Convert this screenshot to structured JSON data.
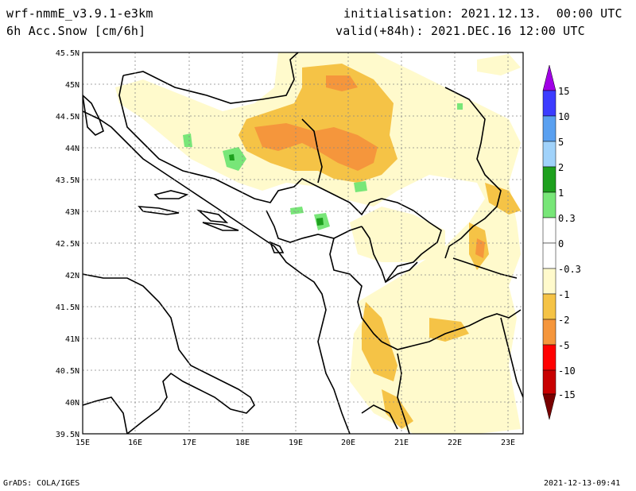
{
  "header": {
    "model": "wrf-nmmE_v3.9.1-e3km",
    "field": "6h Acc.Snow [cm/6h]",
    "init": "initialisation: 2021.12.13.  00:00 UTC",
    "valid": "valid(+84h): 2021.DEC.16 12:00 UTC"
  },
  "footer": {
    "left": "GrADS: COLA/IGES",
    "right": "2021-12-13-09:41"
  },
  "map": {
    "lat_ticks": [
      "39.5N",
      "40N",
      "40.5N",
      "41N",
      "41.5N",
      "42N",
      "42.5N",
      "43N",
      "43.5N",
      "44N",
      "44.5N",
      "45N",
      "45.5N"
    ],
    "lon_ticks": [
      "15E",
      "16E",
      "17E",
      "18E",
      "19E",
      "20E",
      "21E",
      "22E",
      "23E"
    ]
  },
  "colorbar": {
    "labels": [
      "15",
      "10",
      "5",
      "2",
      "1",
      "0.3",
      "0",
      "-0.3",
      "-1",
      "-2",
      "-5",
      "-10",
      "-15"
    ],
    "colors": [
      "#a000e6",
      "#3c3cff",
      "#5aa0f0",
      "#a0d2fa",
      "#1ea01e",
      "#78e678",
      "#ffffff",
      "#fffacc",
      "#f5c346",
      "#f5963c",
      "#ff0000",
      "#c80000",
      "#780000"
    ]
  }
}
